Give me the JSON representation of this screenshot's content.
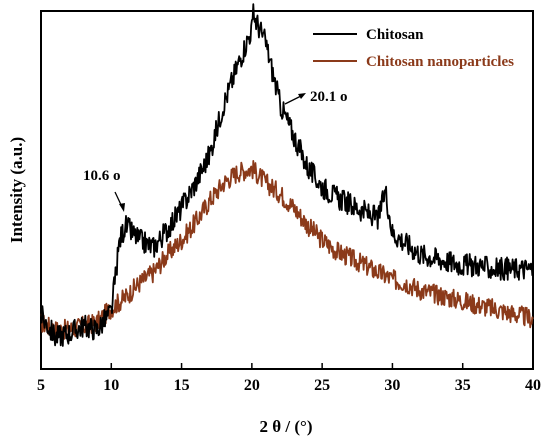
{
  "chart_data": {
    "type": "line",
    "xlabel": "2 θ / (°)",
    "ylabel": "Intensity (a.u.)",
    "xlim": [
      5,
      40
    ],
    "xticks": [
      5,
      10,
      15,
      20,
      25,
      30,
      35,
      40
    ],
    "xtick_labels": [
      "5",
      "10",
      "15",
      "20",
      "25",
      "30",
      "35",
      "40"
    ],
    "ylim": [
      0,
      100
    ],
    "grid": false,
    "legend_position": "top-right",
    "series": [
      {
        "name": "Chitosan",
        "color": "#000000",
        "x": [
          5,
          6,
          7,
          8,
          9,
          10,
          10.6,
          11,
          12,
          13,
          14,
          15,
          16,
          17,
          18,
          19,
          20,
          20.1,
          21,
          22,
          23,
          24,
          25,
          26,
          27,
          28,
          29,
          29.5,
          30,
          31,
          32,
          33,
          34,
          35,
          36,
          37,
          38,
          39,
          40
        ],
        "values": [
          15,
          9,
          10,
          12,
          11,
          16,
          36,
          40,
          36,
          34,
          39,
          45,
          52,
          60,
          74,
          85,
          95,
          99,
          91,
          74,
          65,
          56,
          51,
          48,
          46,
          44,
          42,
          50,
          38,
          35,
          32,
          31,
          30,
          29,
          29,
          28,
          28,
          28,
          28
        ]
      },
      {
        "name": "Chitosan nanoparticles",
        "color": "#8b3a1a",
        "x": [
          5,
          6,
          7,
          8,
          9,
          10,
          11,
          12,
          13,
          14,
          15,
          16,
          17,
          18,
          19,
          20,
          21,
          22,
          23,
          24,
          25,
          26,
          27,
          28,
          29,
          30,
          31,
          32,
          33,
          34,
          35,
          36,
          37,
          38,
          39,
          40
        ],
        "values": [
          13,
          11,
          11,
          12,
          13,
          17,
          20,
          24,
          27,
          32,
          36,
          41,
          47,
          52,
          55,
          56,
          52,
          49,
          45,
          40,
          36,
          33,
          31,
          29,
          27,
          25,
          24,
          22,
          21,
          20,
          19,
          18,
          17,
          16,
          15,
          14
        ]
      }
    ],
    "annotations": [
      {
        "text": "20.1 o",
        "x": 20.1,
        "y": 99
      },
      {
        "text": "10.6 o",
        "x": 10.6,
        "y": 36
      }
    ]
  }
}
